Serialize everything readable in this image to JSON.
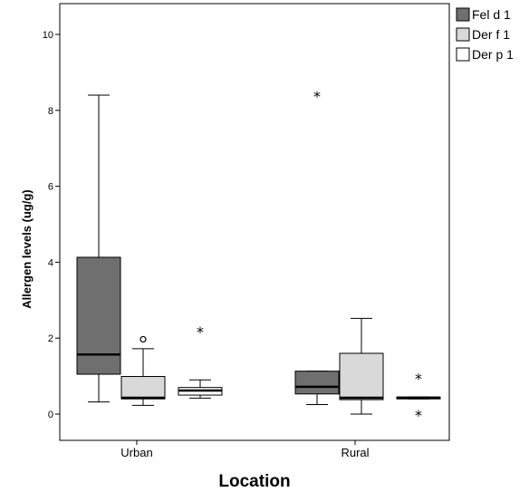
{
  "chart_data": {
    "type": "boxplot",
    "xlabel": "Location",
    "ylabel": "Allergen levels (ug/g)",
    "ylim": [
      0,
      10
    ],
    "yticks": [
      "0",
      "2",
      "4",
      "6",
      "8",
      "10"
    ],
    "categories": [
      "Urban",
      "Rural"
    ],
    "legend_position": "top-right",
    "grid": false,
    "series": [
      {
        "name": "Fel d 1",
        "color": "#6f6f6f",
        "boxes": [
          {
            "category": "Urban",
            "whisker_low": 0.32,
            "q1": 1.05,
            "median": 1.57,
            "q3": 4.13,
            "whisker_high": 8.4,
            "outliers": [],
            "extremes": []
          },
          {
            "category": "Rural",
            "whisker_low": 0.25,
            "q1": 0.53,
            "median": 0.72,
            "q3": 1.13,
            "whisker_high": 1.13,
            "outliers": [],
            "extremes": [
              8.4
            ]
          }
        ]
      },
      {
        "name": "Der f 1",
        "color": "#d9d9d9",
        "boxes": [
          {
            "category": "Urban",
            "whisker_low": 0.23,
            "q1": 0.4,
            "median": 0.43,
            "q3": 0.99,
            "whisker_high": 1.72,
            "outliers": [
              1.97
            ],
            "extremes": []
          },
          {
            "category": "Rural",
            "whisker_low": 0.0,
            "q1": 0.38,
            "median": 0.43,
            "q3": 1.6,
            "whisker_high": 2.52,
            "outliers": [],
            "extremes": []
          }
        ]
      },
      {
        "name": "Der p 1",
        "color": "#ffffff",
        "boxes": [
          {
            "category": "Urban",
            "whisker_low": 0.42,
            "q1": 0.5,
            "median": 0.62,
            "q3": 0.7,
            "whisker_high": 0.9,
            "outliers": [],
            "extremes": [
              2.2
            ]
          },
          {
            "category": "Rural",
            "whisker_low": 0.4,
            "q1": 0.4,
            "median": 0.43,
            "q3": 0.45,
            "whisker_high": 0.45,
            "outliers": [],
            "extremes": [
              0.97,
              0.0
            ]
          }
        ]
      }
    ]
  }
}
